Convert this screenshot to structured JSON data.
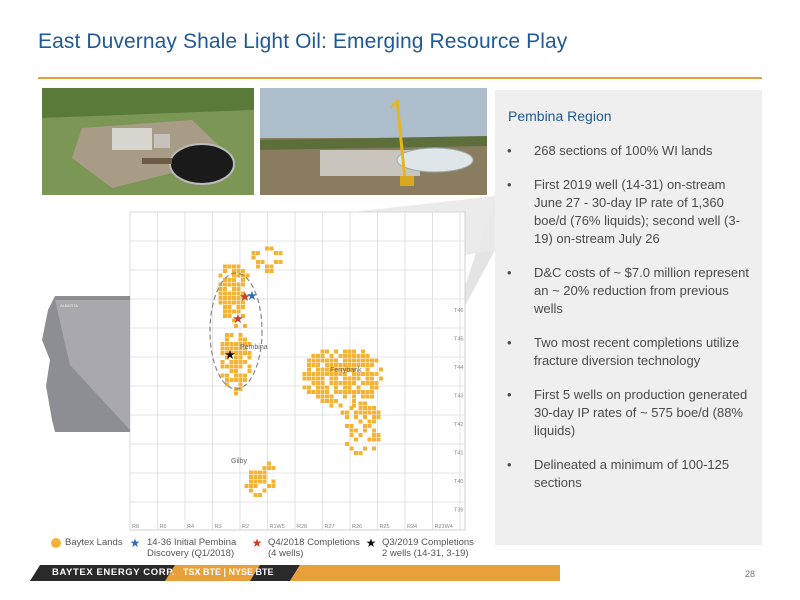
{
  "header": {
    "title": "East Duvernay Shale Light Oil: Emerging Resource Play"
  },
  "panel": {
    "title": "Pembina Region",
    "bullets": [
      "268 sections of 100% WI lands",
      "First 2019 well (14-31) on-stream June 27 - 30-day IP rate of 1,360 boe/d (76% liquids); second well (3-19) on-stream July 26",
      "D&C costs of ~ $7.0 million represent an ~ 20% reduction from previous wells",
      "Two most recent completions utilize fracture diversion technology",
      "First 5 wells on production generated 30-day IP rates of ~ 575 boe/d (88% liquids)",
      "Delineated a minimum of 100-125 sections"
    ]
  },
  "map": {
    "areas": {
      "pembina": "Pembina",
      "ferrybank": "Ferrybank",
      "gilby": "Gilby"
    },
    "township_labels": [
      "T46",
      "T45",
      "T44",
      "T43",
      "T42",
      "T41",
      "T40",
      "T39"
    ],
    "range_labels": [
      "R8",
      "R6",
      "R4",
      "R3",
      "R2",
      "R1W5",
      "R28",
      "R27",
      "R26",
      "R25",
      "R24",
      "R23W4"
    ],
    "inset": {
      "province": "ALBERTA"
    }
  },
  "legend": {
    "baytex_lands": "Baytex Lands",
    "discovery_line1": "14-36 Initial Pembina",
    "discovery_line2": "Discovery (Q1/2018)",
    "q4_line1": "Q4/2018 Completions",
    "q4_line2": "(4 wells)",
    "q3_line1": "Q3/2019 Completions",
    "q3_line2": "2 wells (14-31, 3-19)"
  },
  "footer": {
    "company": "BAYTEX ENERGY CORP.",
    "ticker": "TSX BTE | NYSE BTE",
    "page": "28"
  },
  "colors": {
    "accent": "#e8a13a",
    "title": "#1f5a96",
    "lands": "#f5b335",
    "blue_star": "#2f6fb8",
    "red_star": "#c8402a",
    "black_star": "#111111"
  }
}
